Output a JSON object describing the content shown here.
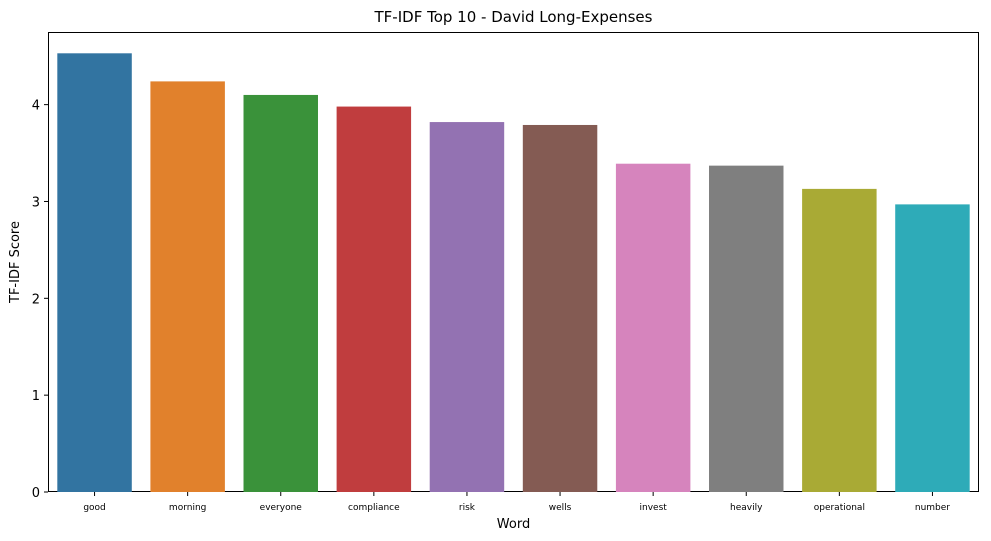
{
  "chart_data": {
    "type": "bar",
    "title": "TF-IDF Top 10 - David Long-Expenses",
    "xlabel": "Word",
    "ylabel": "TF-IDF Score",
    "categories": [
      "good",
      "morning",
      "everyone",
      "compliance",
      "risk",
      "wells",
      "invest",
      "heavily",
      "operational",
      "number"
    ],
    "values": [
      4.53,
      4.24,
      4.1,
      3.98,
      3.82,
      3.79,
      3.39,
      3.37,
      3.13,
      2.97
    ],
    "colors": [
      "#3274a1",
      "#e1812c",
      "#3a923a",
      "#c03d3e",
      "#9372b2",
      "#845b53",
      "#d684bd",
      "#7f7f7f",
      "#a9aa35",
      "#2eabb8"
    ],
    "yticks": [
      0,
      1,
      2,
      3,
      4
    ],
    "ylim": [
      0,
      4.75
    ],
    "grid": false,
    "legend": "none"
  }
}
